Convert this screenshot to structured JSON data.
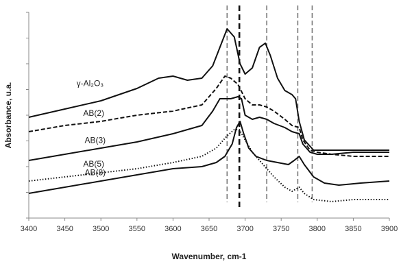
{
  "chart_data": {
    "type": "line",
    "xlabel": "Wavenumber, cm-1",
    "ylabel": "Absorbance, u.a.",
    "xlim": [
      3400,
      3900
    ],
    "x_ticks": [
      3400,
      3450,
      3500,
      3550,
      3600,
      3650,
      3700,
      3750,
      3800,
      3850,
      3900
    ],
    "ylim": [
      0,
      10
    ],
    "y_ticks_labeled": false,
    "grid": false,
    "legend": "none",
    "reference_lines": [
      {
        "x": 3675,
        "style": "dashed",
        "color": "#777777"
      },
      {
        "x": 3692,
        "style": "dashed",
        "color": "#111111"
      },
      {
        "x": 3730,
        "style": "dashed",
        "color": "#777777"
      },
      {
        "x": 3773,
        "style": "dashed",
        "color": "#777777"
      },
      {
        "x": 3793,
        "style": "dashed",
        "color": "#777777"
      }
    ],
    "series": [
      {
        "name": "γ-Al₂O₃",
        "line_style": "solid",
        "color": "#111111",
        "points": [
          [
            3400,
            4.9
          ],
          [
            3450,
            5.3
          ],
          [
            3500,
            5.7
          ],
          [
            3550,
            6.3
          ],
          [
            3580,
            6.8
          ],
          [
            3600,
            6.9
          ],
          [
            3620,
            6.7
          ],
          [
            3640,
            6.8
          ],
          [
            3655,
            7.4
          ],
          [
            3665,
            8.3
          ],
          [
            3675,
            9.2
          ],
          [
            3685,
            8.8
          ],
          [
            3693,
            7.5
          ],
          [
            3700,
            7.0
          ],
          [
            3710,
            7.3
          ],
          [
            3720,
            8.3
          ],
          [
            3728,
            8.5
          ],
          [
            3735,
            7.9
          ],
          [
            3745,
            6.8
          ],
          [
            3755,
            6.2
          ],
          [
            3765,
            6.0
          ],
          [
            3770,
            5.8
          ],
          [
            3775,
            4.7
          ],
          [
            3782,
            3.8
          ],
          [
            3795,
            3.3
          ],
          [
            3820,
            3.3
          ],
          [
            3850,
            3.3
          ],
          [
            3900,
            3.3
          ]
        ]
      },
      {
        "name": "AB(2)",
        "line_style": "dashed",
        "color": "#111111",
        "points": [
          [
            3400,
            4.2
          ],
          [
            3450,
            4.5
          ],
          [
            3500,
            4.7
          ],
          [
            3550,
            5.0
          ],
          [
            3600,
            5.2
          ],
          [
            3640,
            5.5
          ],
          [
            3660,
            6.3
          ],
          [
            3672,
            6.9
          ],
          [
            3680,
            6.8
          ],
          [
            3690,
            6.5
          ],
          [
            3700,
            5.8
          ],
          [
            3710,
            5.5
          ],
          [
            3720,
            5.5
          ],
          [
            3730,
            5.4
          ],
          [
            3740,
            5.2
          ],
          [
            3755,
            4.8
          ],
          [
            3765,
            4.5
          ],
          [
            3775,
            4.4
          ],
          [
            3780,
            3.8
          ],
          [
            3790,
            3.3
          ],
          [
            3800,
            3.2
          ],
          [
            3820,
            3.1
          ],
          [
            3850,
            3.0
          ],
          [
            3900,
            3.0
          ]
        ]
      },
      {
        "name": "AB(3)",
        "line_style": "solid",
        "color": "#111111",
        "points": [
          [
            3400,
            2.8
          ],
          [
            3450,
            3.1
          ],
          [
            3500,
            3.4
          ],
          [
            3550,
            3.7
          ],
          [
            3600,
            4.1
          ],
          [
            3640,
            4.5
          ],
          [
            3655,
            5.2
          ],
          [
            3665,
            5.8
          ],
          [
            3680,
            5.8
          ],
          [
            3690,
            5.9
          ],
          [
            3695,
            5.8
          ],
          [
            3700,
            5.0
          ],
          [
            3710,
            4.8
          ],
          [
            3720,
            4.9
          ],
          [
            3730,
            4.8
          ],
          [
            3740,
            4.6
          ],
          [
            3755,
            4.4
          ],
          [
            3765,
            4.2
          ],
          [
            3775,
            4.1
          ],
          [
            3780,
            3.6
          ],
          [
            3790,
            3.2
          ],
          [
            3800,
            3.1
          ],
          [
            3820,
            3.1
          ],
          [
            3850,
            3.2
          ],
          [
            3900,
            3.2
          ]
        ]
      },
      {
        "name": "AB(5)",
        "line_style": "dotted",
        "color": "#111111",
        "points": [
          [
            3400,
            1.8
          ],
          [
            3450,
            2.0
          ],
          [
            3500,
            2.2
          ],
          [
            3550,
            2.4
          ],
          [
            3600,
            2.7
          ],
          [
            3640,
            3.0
          ],
          [
            3660,
            3.4
          ],
          [
            3675,
            4.0
          ],
          [
            3685,
            4.3
          ],
          [
            3692,
            4.3
          ],
          [
            3700,
            3.8
          ],
          [
            3710,
            3.2
          ],
          [
            3725,
            2.6
          ],
          [
            3740,
            2.0
          ],
          [
            3755,
            1.5
          ],
          [
            3765,
            1.3
          ],
          [
            3775,
            1.5
          ],
          [
            3782,
            1.2
          ],
          [
            3795,
            0.9
          ],
          [
            3820,
            0.8
          ],
          [
            3850,
            0.9
          ],
          [
            3900,
            0.9
          ]
        ]
      },
      {
        "name": "AB(8)",
        "line_style": "solid",
        "color": "#111111",
        "points": [
          [
            3400,
            1.2
          ],
          [
            3450,
            1.5
          ],
          [
            3500,
            1.8
          ],
          [
            3550,
            2.1
          ],
          [
            3600,
            2.4
          ],
          [
            3640,
            2.5
          ],
          [
            3660,
            2.7
          ],
          [
            3672,
            3.0
          ],
          [
            3682,
            3.6
          ],
          [
            3688,
            4.4
          ],
          [
            3693,
            4.7
          ],
          [
            3698,
            4.1
          ],
          [
            3705,
            3.4
          ],
          [
            3715,
            3.0
          ],
          [
            3730,
            2.8
          ],
          [
            3745,
            2.7
          ],
          [
            3760,
            2.6
          ],
          [
            3768,
            2.8
          ],
          [
            3775,
            3.0
          ],
          [
            3782,
            2.6
          ],
          [
            3795,
            2.0
          ],
          [
            3810,
            1.7
          ],
          [
            3830,
            1.6
          ],
          [
            3860,
            1.7
          ],
          [
            3900,
            1.8
          ]
        ]
      }
    ]
  }
}
